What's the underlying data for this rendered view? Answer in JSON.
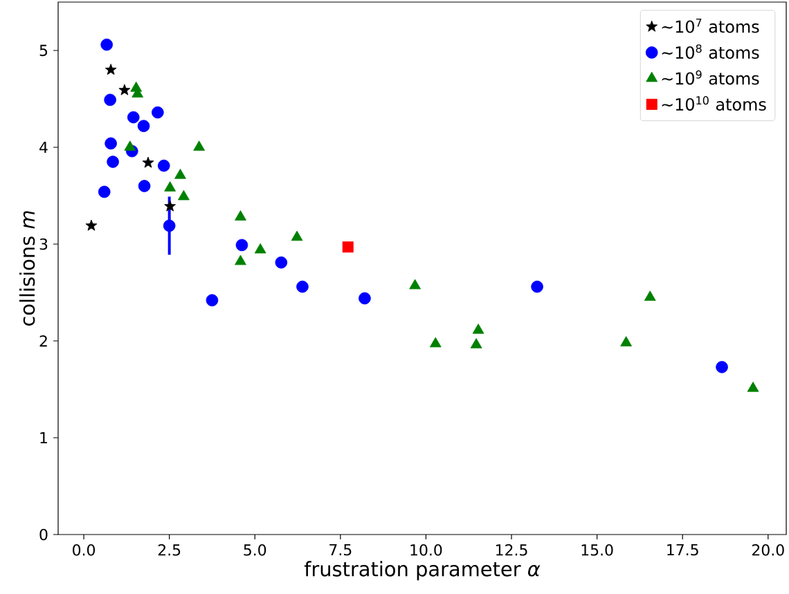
{
  "chart_data": {
    "type": "scatter",
    "xlabel": "frustration parameter *α*",
    "ylabel": "collisions *m*",
    "xlim": [
      -0.75,
      20.53
    ],
    "ylim": [
      0,
      5.5
    ],
    "xticks": [
      {
        "value": 0,
        "label": "0.0"
      },
      {
        "value": 2.5,
        "label": "2.5"
      },
      {
        "value": 5,
        "label": "5.0"
      },
      {
        "value": 7.5,
        "label": "7.5"
      },
      {
        "value": 10,
        "label": "10.0"
      },
      {
        "value": 12.5,
        "label": "12.5"
      },
      {
        "value": 15,
        "label": "15.0"
      },
      {
        "value": 17.5,
        "label": "17.5"
      },
      {
        "value": 20,
        "label": "20.0"
      }
    ],
    "yticks": [
      0,
      1,
      2,
      3,
      4,
      5
    ],
    "legend": "top right",
    "series": [
      {
        "name": "∼10$^{7}$ atoms",
        "color": "#000000",
        "marker": "star",
        "x": [
          0.22,
          0.79,
          1.19,
          1.88,
          2.52
        ],
        "values": [
          3.19,
          4.8,
          4.59,
          3.84,
          3.39
        ]
      },
      {
        "name": "∼10$^{8}$ atoms",
        "color": "#0000ff",
        "marker": "circle",
        "x": [
          0.67,
          0.77,
          0.79,
          0.85,
          0.6,
          1.41,
          1.45,
          1.75,
          2.16,
          1.77,
          2.34,
          2.5,
          3.75,
          4.62,
          5.77,
          6.39,
          8.21,
          13.25,
          18.65
        ],
        "values": [
          5.06,
          4.49,
          4.04,
          3.85,
          3.54,
          3.96,
          4.31,
          4.22,
          4.36,
          3.6,
          3.81,
          3.19,
          2.42,
          2.99,
          2.81,
          2.56,
          2.44,
          2.56,
          1.73
        ],
        "errors": [
          null,
          null,
          null,
          null,
          null,
          null,
          null,
          null,
          null,
          null,
          null,
          0.3,
          null,
          null,
          null,
          null,
          null,
          null,
          null
        ]
      },
      {
        "name": "∼10$^{9}$ atoms",
        "color": "#008000",
        "marker": "triangle",
        "x": [
          1.53,
          1.57,
          1.35,
          3.37,
          2.82,
          2.52,
          2.92,
          4.58,
          5.16,
          4.58,
          6.23,
          9.68,
          10.28,
          11.47,
          11.53,
          15.85,
          16.55,
          19.56
        ],
        "values": [
          4.61,
          4.55,
          4.0,
          4.0,
          3.71,
          3.58,
          3.49,
          3.28,
          2.94,
          2.82,
          3.07,
          2.57,
          1.97,
          1.96,
          2.11,
          1.98,
          2.45,
          1.51
        ]
      },
      {
        "name": "∼10$^{10}$ atoms",
        "color": "#ff0000",
        "marker": "square",
        "x": [
          7.72
        ],
        "values": [
          2.97
        ]
      }
    ]
  }
}
